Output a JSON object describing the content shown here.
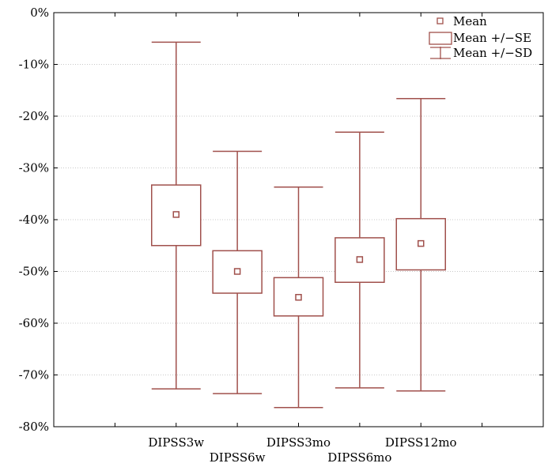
{
  "chart_data": {
    "type": "box",
    "title": "",
    "xlabel": "",
    "ylabel": "",
    "ylim": [
      -80,
      0
    ],
    "yticks": [
      "0%",
      "-10%",
      "-20%",
      "-30%",
      "-40%",
      "-50%",
      "-60%",
      "-70%",
      "-80%"
    ],
    "ytick_values": [
      0,
      -10,
      -20,
      -30,
      -40,
      -50,
      -60,
      -70,
      -80
    ],
    "grid": "horizontal",
    "legend_position": "top-right",
    "legend": [
      "Mean",
      "Mean +/−SE",
      "Mean +/−SD"
    ],
    "categories": [
      "DIPSS3w",
      "DIPSS6w",
      "DIPSS3mo",
      "DIPSS6mo",
      "DIPSS12mo"
    ],
    "series": [
      {
        "category": "DIPSS3w",
        "mean": -39.0,
        "se_low": -45.0,
        "se_high": -33.3,
        "sd_low": -72.7,
        "sd_high": -5.7
      },
      {
        "category": "DIPSS6w",
        "mean": -50.0,
        "se_low": -54.2,
        "se_high": -46.0,
        "sd_low": -73.6,
        "sd_high": -26.8
      },
      {
        "category": "DIPSS3mo",
        "mean": -55.0,
        "se_low": -58.6,
        "se_high": -51.2,
        "sd_low": -76.3,
        "sd_high": -33.7
      },
      {
        "category": "DIPSS6mo",
        "mean": -47.7,
        "se_low": -52.1,
        "se_high": -43.5,
        "sd_low": -72.5,
        "sd_high": -23.1
      },
      {
        "category": "DIPSS12mo",
        "mean": -44.6,
        "se_low": -49.7,
        "se_high": -39.8,
        "sd_low": -73.1,
        "sd_high": -16.6
      }
    ],
    "colors": {
      "box": "#a0504c",
      "axis": "#000000",
      "grid": "#c8c8c8"
    }
  }
}
